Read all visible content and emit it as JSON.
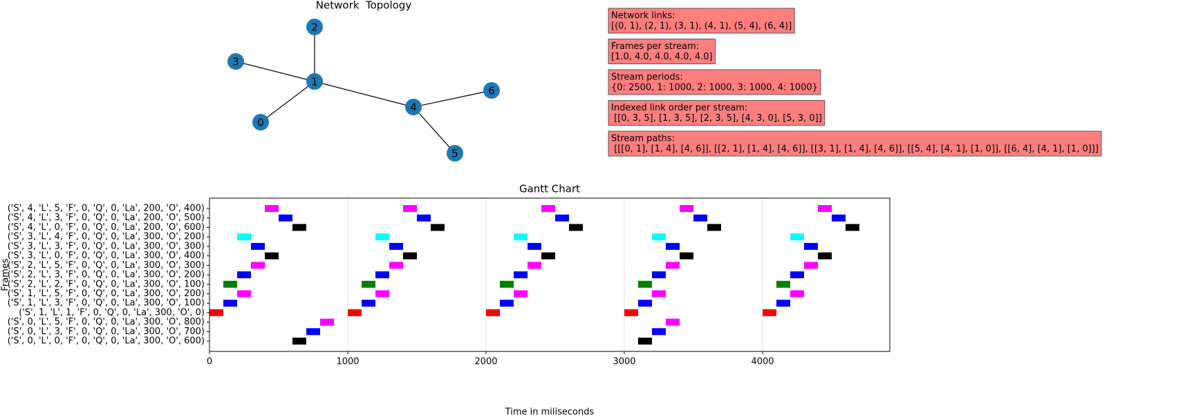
{
  "chart_data": [
    {
      "type": "network",
      "title": "Network  Topology",
      "nodes": [
        0,
        1,
        2,
        3,
        4,
        5,
        6
      ],
      "edges": [
        [
          0,
          1
        ],
        [
          2,
          1
        ],
        [
          3,
          1
        ],
        [
          4,
          1
        ],
        [
          5,
          4
        ],
        [
          6,
          4
        ]
      ],
      "node_color": "#1f77b4",
      "annotations": [
        {
          "title": "Network links:",
          "text": "[(0, 1), (2, 1), (3, 1), (4, 1), (5, 4), (6, 4)]"
        },
        {
          "title": "Frames per stream:",
          "text": "[1.0, 4.0, 4.0, 4.0, 4.0]"
        },
        {
          "title": "Stream periods:",
          "text": "{0: 2500, 1: 1000, 2: 1000, 3: 1000, 4: 1000}"
        },
        {
          "title": "Indexed link order per stream:",
          "text": " [[0, 3, 5], [1, 3, 5], [2, 3, 5], [4, 3, 0], [5, 3, 0]]"
        },
        {
          "title": "Stream paths:",
          "text": " [[[0, 1], [1, 4], [4, 6]], [[2, 1], [1, 4], [4, 6]], [[3, 1], [1, 4], [4, 6]], [[5, 4], [4, 1], [1, 0]], [[6, 4], [4, 1], [1, 0]]]"
        }
      ]
    },
    {
      "type": "gantt",
      "title": "Gantt Chart",
      "x_label": "Time in miliseconds",
      "y_label": "Frames",
      "categories": [
        "('S', 4, 'L', 5, 'F', 0, 'Q', 0, 'La', 200, 'O', 400)",
        "('S', 4, 'L', 3, 'F', 0, 'Q', 0, 'La', 200, 'O', 500)",
        "('S', 4, 'L', 0, 'F', 0, 'Q', 0, 'La', 200, 'O', 600)",
        "('S', 3, 'L', 4, 'F', 0, 'Q', 0, 'La', 300, 'O', 200)",
        "('S', 3, 'L', 3, 'F', 0, 'Q', 0, 'La', 300, 'O', 300)",
        "('S', 3, 'L', 0, 'F', 0, 'Q', 0, 'La', 300, 'O', 400)",
        "('S', 2, 'L', 5, 'F', 0, 'Q', 0, 'La', 300, 'O', 300)",
        "('S', 2, 'L', 3, 'F', 0, 'Q', 0, 'La', 300, 'O', 200)",
        "('S', 2, 'L', 2, 'F', 0, 'Q', 0, 'La', 300, 'O', 100)",
        "('S', 1, 'L', 5, 'F', 0, 'Q', 0, 'La', 300, 'O', 200)",
        "('S', 1, 'L', 3, 'F', 0, 'Q', 0, 'La', 300, 'O', 100)",
        "('S', 1, 'L', 1, 'F', 0, 'Q', 0, 'La', 300, 'O', 0)",
        "('S', 0, 'L', 5, 'F', 0, 'Q', 0, 'La', 300, 'O', 800)",
        "('S', 0, 'L', 3, 'F', 0, 'Q', 0, 'La', 300, 'O', 700)",
        "('S', 0, 'L', 0, 'F', 0, 'Q', 0, 'La', 300, 'O', 600)"
      ],
      "starts": [
        [
          400,
          1400,
          2400,
          3400,
          4400
        ],
        [
          500,
          1500,
          2500,
          3500,
          4500
        ],
        [
          600,
          1600,
          2600,
          3600,
          4600
        ],
        [
          200,
          1200,
          2200,
          3200,
          4200
        ],
        [
          300,
          1300,
          2300,
          3300,
          4300
        ],
        [
          400,
          1400,
          2400,
          3400,
          4400
        ],
        [
          300,
          1300,
          2300,
          3300,
          4300
        ],
        [
          200,
          1200,
          2200,
          3200,
          4200
        ],
        [
          100,
          1100,
          2100,
          3100,
          4100
        ],
        [
          200,
          1200,
          2200,
          3200,
          4200
        ],
        [
          100,
          1100,
          2100,
          3100,
          4100
        ],
        [
          0,
          1000,
          2000,
          3000,
          4000
        ],
        [
          800,
          3300
        ],
        [
          700,
          3200
        ],
        [
          600,
          3100
        ]
      ],
      "duration": 100,
      "colors": [
        "#ff00ff",
        "#0000ff",
        "#000000",
        "#00ffff",
        "#0000ff",
        "#000000",
        "#ff00ff",
        "#0000ff",
        "#008000",
        "#ff00ff",
        "#0000ff",
        "#ff0000",
        "#ff00ff",
        "#0000ff",
        "#000000"
      ],
      "xlim": [
        0,
        4920
      ],
      "xticks": [
        0,
        1000,
        2000,
        3000,
        4000
      ],
      "grid": true
    }
  ]
}
